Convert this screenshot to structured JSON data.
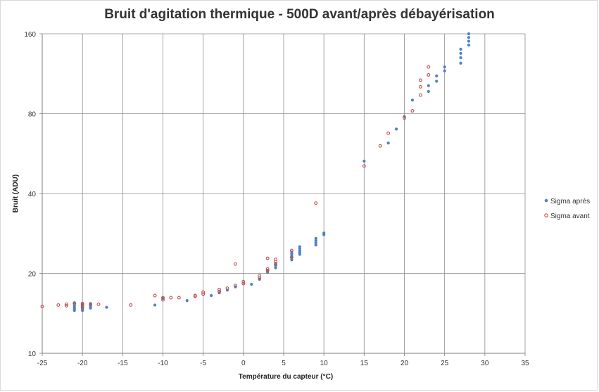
{
  "chart_data": {
    "type": "scatter",
    "title": "Bruit d'agitation thermique - 500D avant/après débayérisation",
    "xlabel": "Température du capteur (°C)",
    "ylabel": "Bruit (ADU)",
    "xlim": [
      -25,
      35
    ],
    "x_ticks": [
      -25,
      -20,
      -15,
      -10,
      -5,
      0,
      5,
      10,
      15,
      20,
      25,
      30,
      35
    ],
    "y_scale": "log2",
    "ylim": [
      10,
      160
    ],
    "y_ticks": [
      10,
      20,
      40,
      80,
      160
    ],
    "grid": true,
    "legend_position": "right",
    "series": [
      {
        "name": "Sigma après",
        "color": "#4f81bd",
        "marker": "filled-circle",
        "points": [
          [
            -21,
            14.5
          ],
          [
            -21,
            14.7
          ],
          [
            -21,
            14.9
          ],
          [
            -21,
            15.1
          ],
          [
            -21,
            15.5
          ],
          [
            -20,
            14.5
          ],
          [
            -20,
            14.7
          ],
          [
            -20,
            14.9
          ],
          [
            -20,
            15.1
          ],
          [
            -20,
            15.3
          ],
          [
            -19,
            14.8
          ],
          [
            -19,
            15.0
          ],
          [
            -19,
            15.2
          ],
          [
            -19,
            15.4
          ],
          [
            -17,
            14.9
          ],
          [
            -11,
            15.2
          ],
          [
            -10,
            16.1
          ],
          [
            -7,
            15.8
          ],
          [
            -4,
            16.5
          ],
          [
            -3,
            16.9
          ],
          [
            -2,
            17.3
          ],
          [
            -1,
            17.8
          ],
          [
            1,
            18.2
          ],
          [
            2,
            19.0
          ],
          [
            3,
            20.2
          ],
          [
            3,
            20.5
          ],
          [
            4,
            21.0
          ],
          [
            4,
            21.4
          ],
          [
            4,
            21.8
          ],
          [
            6,
            22.5
          ],
          [
            6,
            22.9
          ],
          [
            6,
            23.3
          ],
          [
            6,
            23.7
          ],
          [
            6,
            24.1
          ],
          [
            7,
            23.6
          ],
          [
            7,
            24.0
          ],
          [
            7,
            24.4
          ],
          [
            7,
            24.8
          ],
          [
            7,
            25.2
          ],
          [
            9,
            25.6
          ],
          [
            9,
            26.1
          ],
          [
            9,
            26.6
          ],
          [
            9,
            27.1
          ],
          [
            10,
            28.0
          ],
          [
            10,
            28.4
          ],
          [
            15,
            53
          ],
          [
            18,
            62
          ],
          [
            19,
            70
          ],
          [
            20,
            78
          ],
          [
            21,
            90
          ],
          [
            23,
            97
          ],
          [
            23,
            102
          ],
          [
            24,
            106
          ],
          [
            24,
            111
          ],
          [
            25,
            116
          ],
          [
            25,
            120
          ],
          [
            27,
            124
          ],
          [
            27,
            130
          ],
          [
            27,
            135
          ],
          [
            27,
            140
          ],
          [
            28,
            145
          ],
          [
            28,
            150
          ],
          [
            28,
            155
          ],
          [
            28,
            160
          ]
        ]
      },
      {
        "name": "Sigma avant",
        "color": "#c0504d",
        "marker": "open-circle",
        "points": [
          [
            -25,
            15.0
          ],
          [
            -23,
            15.2
          ],
          [
            -22,
            15.1
          ],
          [
            -22,
            15.3
          ],
          [
            -21,
            15.4
          ],
          [
            -20,
            14.9
          ],
          [
            -20,
            15.2
          ],
          [
            -20,
            15.4
          ],
          [
            -19,
            15.3
          ],
          [
            -18,
            15.3
          ],
          [
            -14,
            15.2
          ],
          [
            -11,
            16.5
          ],
          [
            -10,
            15.9
          ],
          [
            -10,
            16.2
          ],
          [
            -9,
            16.2
          ],
          [
            -8,
            16.2
          ],
          [
            -6,
            16.4
          ],
          [
            -6,
            16.5
          ],
          [
            -5,
            16.7
          ],
          [
            -5,
            17.0
          ],
          [
            -3,
            17.1
          ],
          [
            -3,
            17.4
          ],
          [
            -2,
            17.6
          ],
          [
            -1,
            18.0
          ],
          [
            -1,
            21.7
          ],
          [
            0,
            18.3
          ],
          [
            0,
            18.6
          ],
          [
            2,
            19.2
          ],
          [
            2,
            19.6
          ],
          [
            3,
            20.5
          ],
          [
            3,
            20.8
          ],
          [
            3,
            22.8
          ],
          [
            4,
            21.6
          ],
          [
            4,
            22.1
          ],
          [
            4,
            22.6
          ],
          [
            6,
            23.0
          ],
          [
            6,
            24.4
          ],
          [
            9,
            36.8
          ],
          [
            15,
            50.8
          ],
          [
            17,
            60.5
          ],
          [
            18,
            67.5
          ],
          [
            20,
            77
          ],
          [
            21,
            82
          ],
          [
            22,
            94
          ],
          [
            22,
            101
          ],
          [
            22,
            107
          ],
          [
            23,
            112
          ],
          [
            23,
            120
          ]
        ]
      }
    ]
  }
}
